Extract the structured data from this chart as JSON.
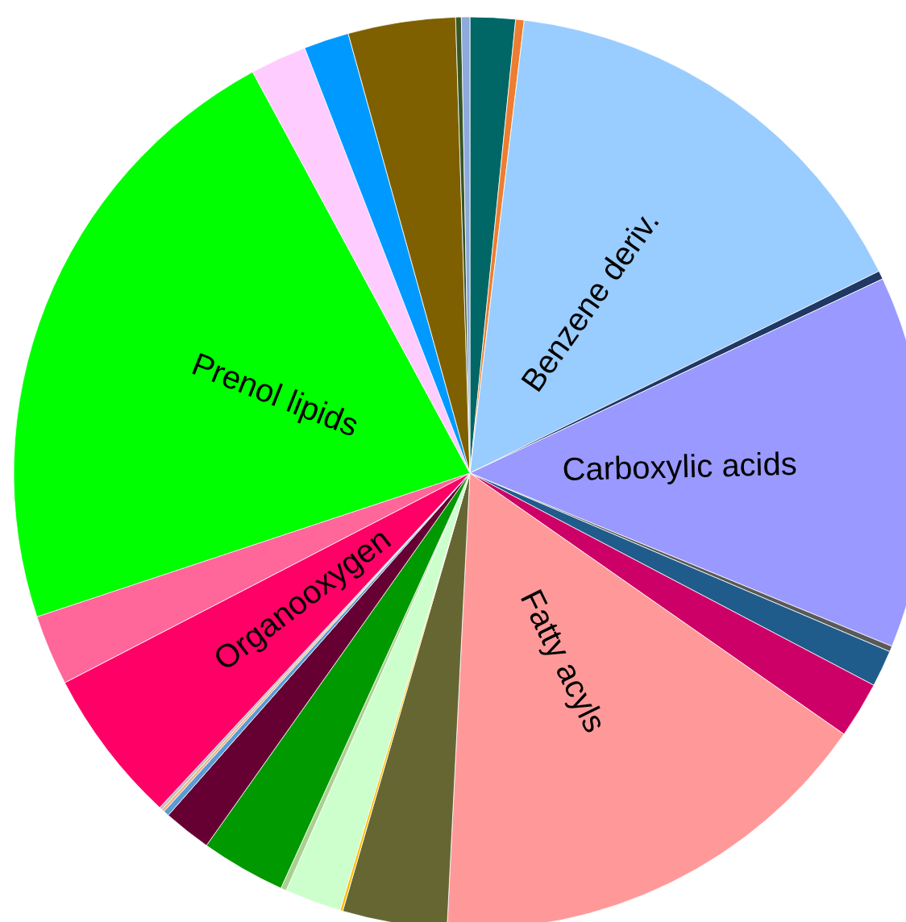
{
  "chart_data": {
    "type": "pie",
    "categories": [
      null,
      null,
      "Benzene deriv.",
      null,
      "Carboxylic acids",
      null,
      null,
      null,
      "Fatty acyls",
      null,
      null,
      null,
      null,
      null,
      null,
      null,
      null,
      null,
      "Organooxygen",
      null,
      "Prenol lipids",
      null,
      null,
      null,
      null,
      null
    ],
    "values": [
      1.6,
      0.3,
      15.8,
      0.3,
      13.2,
      0.2,
      1.3,
      2.0,
      16.1,
      3.7,
      0.1,
      2.0,
      0.2,
      3.0,
      1.7,
      0.2,
      0.1,
      0.1,
      5.5,
      2.5,
      22.2,
      2.0,
      1.6,
      3.8,
      0.2,
      0.3
    ],
    "colors": [
      "#006666",
      "#ed7d31",
      "#99ccff",
      "#1f3864",
      "#9999ff",
      "#595959",
      "#1f5c8b",
      "#cc0066",
      "#ff9999",
      "#666633",
      "#ffc000",
      "#ccffcc",
      "#a9d18e",
      "#009900",
      "#660033",
      "#5b9bd5",
      "#f4b183",
      "#bfbfbf",
      "#ff0066",
      "#ff6699",
      "#00ff00",
      "#ffccff",
      "#0099ff",
      "#7f6000",
      "#375623",
      "#8ea9db"
    ]
  }
}
